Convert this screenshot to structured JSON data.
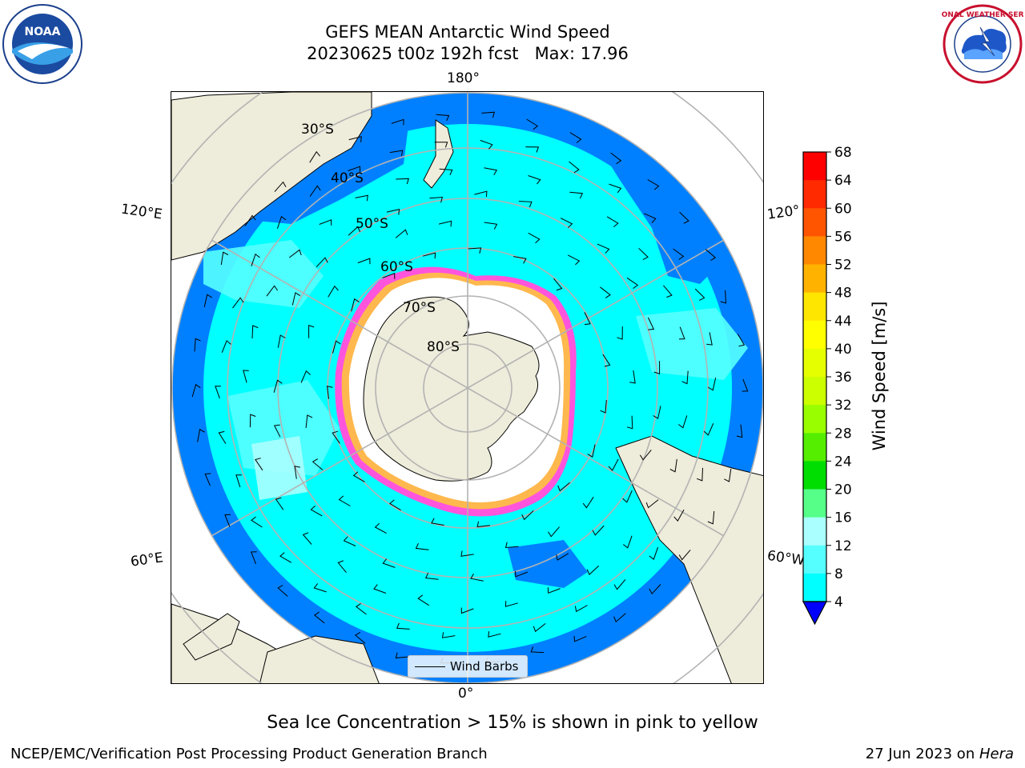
{
  "header": {
    "title_line1": "GEFS MEAN Antarctic Wind Speed",
    "title_line2": "20230625 t00z 192h fcst   Max: 17.96"
  },
  "logos": {
    "noaa": {
      "name": "noaa-logo",
      "text": "NOAA"
    },
    "nws": {
      "name": "nws-logo",
      "text": "NATIONAL WEATHER SERVICE"
    }
  },
  "map": {
    "projection": "south-polar-stereographic",
    "longitude_labels": {
      "top": "180°",
      "bottom": "0°",
      "upper_left": "120°E",
      "upper_right": "120°",
      "lower_left": "60°E",
      "lower_right": "60°W"
    },
    "latitude_labels": [
      "30°S",
      "40°S",
      "50°S",
      "60°S",
      "70°S",
      "80°S"
    ],
    "legend_label": "Wind Barbs",
    "colors": {
      "land": "#eeecda",
      "sea_ice": "#ffffff",
      "ice_edge": [
        "#ff33ff",
        "#ff66cc",
        "#ffaa33",
        "#ffd700"
      ],
      "graticule": "#b3b3b3"
    }
  },
  "colorbar": {
    "label": "Wind Speed [m/s]",
    "ticks": [
      "68",
      "64",
      "60",
      "56",
      "52",
      "48",
      "44",
      "40",
      "36",
      "32",
      "28",
      "24",
      "20",
      "16",
      "12",
      "8",
      "4"
    ],
    "colors": [
      "#ff0000",
      "#ff2a00",
      "#ff5500",
      "#ff8800",
      "#ffb300",
      "#ffe600",
      "#ffff00",
      "#e6ff00",
      "#ccff00",
      "#99ff00",
      "#55ee00",
      "#00dd00",
      "#55ff88",
      "#aaffff",
      "#55ffff",
      "#00ffff",
      "#0080ff"
    ],
    "under_color": "#0000ff"
  },
  "footnote": "Sea Ice Concentration > 15% is shown in pink to yellow",
  "footer": {
    "left": "NCEP/EMC/Verification Post Processing Product Generation Branch",
    "right_date": "27 Jun 2023 on ",
    "right_host": "Hera"
  }
}
